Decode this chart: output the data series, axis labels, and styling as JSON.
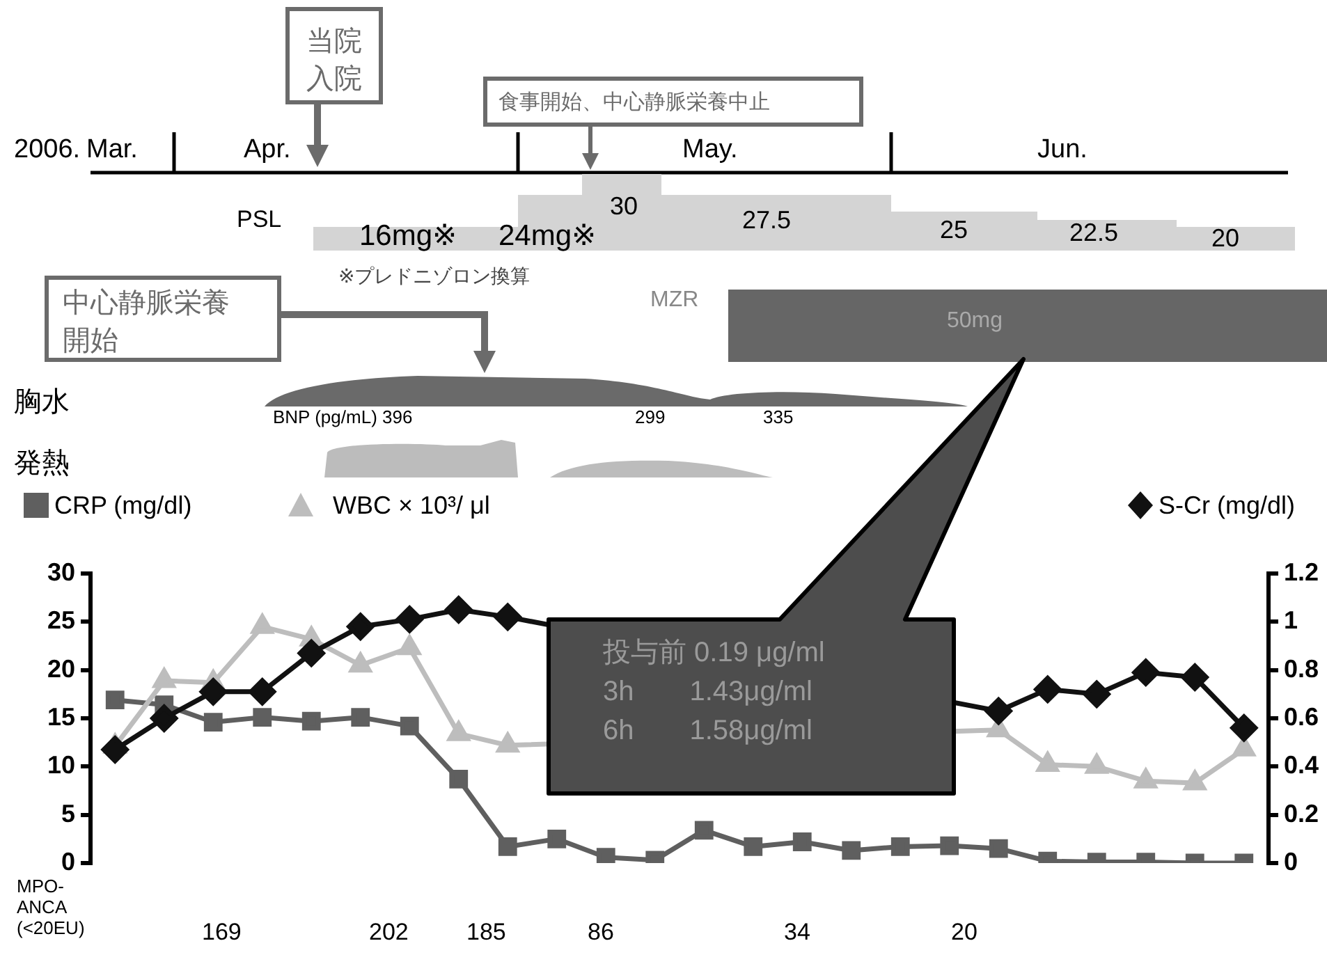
{
  "chart_data": {
    "type": "line",
    "categories": [
      null,
      null,
      null,
      null,
      null,
      null,
      null,
      null,
      null,
      null,
      null,
      null,
      null,
      null,
      null,
      null,
      null,
      null,
      null,
      null,
      null,
      null,
      null,
      null
    ],
    "series": [
      {
        "name": "CRP (mg/dl)",
        "color": "#5f5f5f",
        "marker": "square",
        "values": [
          16.9,
          16.4,
          14.6,
          15.1,
          14.7,
          15.1,
          14.2,
          8.7,
          1.7,
          2.5,
          0.6,
          0.3,
          3.4,
          1.7,
          2.2,
          1.3,
          1.7,
          1.8,
          1.5,
          0.2,
          0.1,
          0.1,
          0,
          0
        ]
      },
      {
        "name": "WBC × 10³/ μl",
        "color": "#bdbdbd",
        "marker": "triangle",
        "values": [
          12.1,
          18.9,
          18.7,
          24.5,
          23.2,
          20.5,
          22.3,
          13.4,
          12.2,
          null,
          null,
          null,
          null,
          null,
          null,
          null,
          null,
          null,
          13.8,
          10.2,
          10.0,
          8.5,
          8.3,
          11.8
        ]
      },
      {
        "name": "S-Cr (mg/dl)",
        "color": "#111111",
        "marker": "diamond",
        "axis": "y2",
        "values": [
          0.47,
          0.6,
          0.71,
          0.71,
          0.87,
          0.98,
          1.01,
          1.05,
          1.02,
          null,
          null,
          null,
          null,
          null,
          null,
          null,
          null,
          null,
          0.63,
          0.72,
          0.7,
          0.79,
          0.77,
          0.56
        ]
      }
    ],
    "ylim": [
      0,
      30
    ],
    "yticks": [
      0,
      5,
      10,
      15,
      20,
      25,
      30
    ],
    "y2lim": [
      0,
      1.2
    ],
    "y2ticks": [
      0,
      0.2,
      0.4,
      0.6,
      0.8,
      1,
      1.2
    ],
    "grid": false,
    "legend": "top",
    "line_style": "solid",
    "annotations": [
      "当院入院",
      "食事開始、中心静脈栄養中止",
      "2006.",
      "Mar.",
      "Apr.",
      "May.",
      "Jun.",
      "PSL",
      "16mg※",
      "24mg※",
      "30",
      "27.5",
      "25",
      "22.5",
      "20",
      "※プレドニゾロン換算",
      "中心静脈栄養開始",
      "MZR",
      "50mg",
      "胸水",
      "BNP (pg/mL) 396",
      "299",
      "335",
      "発熱",
      "投与前 0.19 μg/ml",
      "3h　　1.43μg/ml",
      "6h　　1.58μg/ml",
      "MPO-ANCA (<20EU)",
      "169",
      "202",
      "185",
      "86",
      "34",
      "20"
    ]
  }
}
